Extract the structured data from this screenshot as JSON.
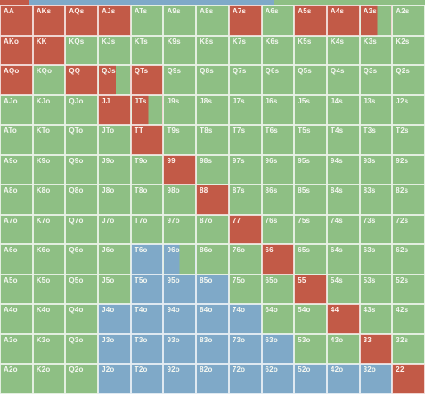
{
  "chart_data": {
    "type": "grid",
    "rows": [
      [
        "AA",
        "AKs",
        "AQs",
        "AJs",
        "ATs",
        "A9s",
        "A8s",
        "A7s",
        "A6s",
        "A5s",
        "A4s",
        "A3s",
        "A2s"
      ],
      [
        "AKo",
        "KK",
        "KQs",
        "KJs",
        "KTs",
        "K9s",
        "K8s",
        "K7s",
        "K6s",
        "K5s",
        "K4s",
        "K3s",
        "K2s"
      ],
      [
        "AQo",
        "KQo",
        "QQ",
        "QJs",
        "QTs",
        "Q9s",
        "Q8s",
        "Q7s",
        "Q6s",
        "Q5s",
        "Q4s",
        "Q3s",
        "Q2s"
      ],
      [
        "AJo",
        "KJo",
        "QJo",
        "JJ",
        "JTs",
        "J9s",
        "J8s",
        "J7s",
        "J6s",
        "J5s",
        "J4s",
        "J3s",
        "J2s"
      ],
      [
        "ATo",
        "KTo",
        "QTo",
        "JTo",
        "TT",
        "T9s",
        "T8s",
        "T7s",
        "T6s",
        "T5s",
        "T4s",
        "T3s",
        "T2s"
      ],
      [
        "A9o",
        "K9o",
        "Q9o",
        "J9o",
        "T9o",
        "99",
        "98s",
        "97s",
        "96s",
        "95s",
        "94s",
        "93s",
        "92s"
      ],
      [
        "A8o",
        "K8o",
        "Q8o",
        "J8o",
        "T8o",
        "98o",
        "88",
        "87s",
        "86s",
        "85s",
        "84s",
        "83s",
        "82s"
      ],
      [
        "A7o",
        "K7o",
        "Q7o",
        "J7o",
        "T7o",
        "97o",
        "87o",
        "77",
        "76s",
        "75s",
        "74s",
        "73s",
        "72s"
      ],
      [
        "A6o",
        "K6o",
        "Q6o",
        "J6o",
        "T6o",
        "96o",
        "86o",
        "76o",
        "66",
        "65s",
        "64s",
        "63s",
        "62s"
      ],
      [
        "A5o",
        "K5o",
        "Q5o",
        "J5o",
        "T5o",
        "95o",
        "85o",
        "75o",
        "65o",
        "55",
        "54s",
        "53s",
        "52s"
      ],
      [
        "A4o",
        "K4o",
        "Q4o",
        "J4o",
        "T4o",
        "94o",
        "84o",
        "74o",
        "64o",
        "54o",
        "44",
        "43s",
        "42s"
      ],
      [
        "A3o",
        "K3o",
        "Q3o",
        "J3o",
        "T3o",
        "93o",
        "83o",
        "73o",
        "63o",
        "53o",
        "43o",
        "33",
        "32s"
      ],
      [
        "A2o",
        "K2o",
        "Q2o",
        "J2o",
        "T2o",
        "92o",
        "82o",
        "72o",
        "62o",
        "52o",
        "42o",
        "32o",
        "22"
      ]
    ],
    "classes": [
      [
        "red",
        "red",
        "red",
        "red",
        "green",
        "green",
        "green",
        "red",
        "green",
        "red",
        "red",
        "mixed-red",
        "green"
      ],
      [
        "red",
        "red",
        "green",
        "green",
        "green",
        "green",
        "green",
        "green",
        "green",
        "green",
        "green",
        "green",
        "green"
      ],
      [
        "red",
        "green",
        "red",
        "mixed-red",
        "red",
        "green",
        "green",
        "green",
        "green",
        "green",
        "green",
        "green",
        "green"
      ],
      [
        "green",
        "green",
        "green",
        "red",
        "mixed-red",
        "green",
        "green",
        "green",
        "green",
        "green",
        "green",
        "green",
        "green"
      ],
      [
        "green",
        "green",
        "green",
        "green",
        "red",
        "green",
        "green",
        "green",
        "green",
        "green",
        "green",
        "green",
        "green"
      ],
      [
        "green",
        "green",
        "green",
        "green",
        "green",
        "red",
        "green",
        "green",
        "green",
        "green",
        "green",
        "green",
        "green"
      ],
      [
        "green",
        "green",
        "green",
        "green",
        "green",
        "green",
        "red",
        "green",
        "green",
        "green",
        "green",
        "green",
        "green"
      ],
      [
        "green",
        "green",
        "green",
        "green",
        "green",
        "green",
        "green",
        "red",
        "green",
        "green",
        "green",
        "green",
        "green"
      ],
      [
        "green",
        "green",
        "green",
        "green",
        "blue",
        "mixed-blue",
        "green",
        "green",
        "red",
        "green",
        "green",
        "green",
        "green"
      ],
      [
        "green",
        "green",
        "green",
        "green",
        "blue",
        "blue",
        "blue",
        "green",
        "green",
        "red",
        "green",
        "green",
        "green"
      ],
      [
        "green",
        "green",
        "green",
        "blue",
        "blue",
        "blue",
        "blue",
        "blue",
        "green",
        "green",
        "red",
        "green",
        "green"
      ],
      [
        "green",
        "green",
        "green",
        "blue",
        "blue",
        "blue",
        "blue",
        "blue",
        "blue",
        "green",
        "green",
        "red",
        "green"
      ],
      [
        "green",
        "green",
        "green",
        "blue",
        "blue",
        "blue",
        "blue",
        "blue",
        "blue",
        "blue",
        "blue",
        "blue",
        "red"
      ]
    ],
    "colors": {
      "green": "#8ebf84",
      "red": "#c25a47",
      "blue": "#7fa9c8"
    }
  }
}
